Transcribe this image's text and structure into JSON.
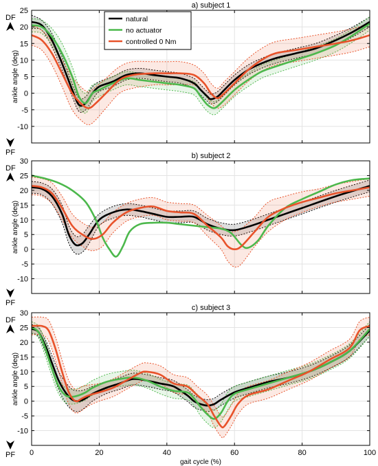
{
  "chart_data": [
    {
      "type": "line",
      "title": "a) subject 1",
      "xlabel": "",
      "ylabel": "ankle angle (deg)",
      "xlim": [
        0,
        100
      ],
      "ylim": [
        -15,
        25
      ],
      "yticks": [
        -10,
        -5,
        0,
        5,
        10,
        15,
        20,
        25
      ],
      "xticks": [
        0,
        20,
        40,
        60,
        80,
        100
      ],
      "grid": true,
      "side_labels": {
        "top": "DF",
        "bottom": "PF"
      },
      "legend": {
        "placement": "top-center",
        "entries": [
          "natural",
          "no actuator",
          "controlled 0 Nm"
        ]
      },
      "series": [
        {
          "name": "natural",
          "color": "#000000",
          "x": [
            0,
            3,
            6,
            9,
            12,
            14,
            16,
            18,
            20,
            24,
            28,
            32,
            36,
            40,
            44,
            48,
            50,
            52,
            53,
            55,
            57,
            60,
            64,
            68,
            72,
            78,
            84,
            90,
            95,
            100
          ],
          "y": [
            21.5,
            20.5,
            16,
            9,
            1,
            -3.5,
            -3,
            0,
            2,
            3.5,
            5.5,
            6,
            5.5,
            5,
            4.5,
            3,
            1,
            -1,
            -1.8,
            -1,
            1,
            4,
            7,
            9,
            10.5,
            12,
            13.5,
            16,
            18.5,
            21.5
          ],
          "band": [
            2,
            1.5,
            2,
            2,
            2,
            2,
            2,
            2,
            1.5,
            1.5,
            1.5,
            1.5,
            1.5,
            1.5,
            1.5,
            1.5,
            1.5,
            1.5,
            1.5,
            1.5,
            1.5,
            1.5,
            1.5,
            1.5,
            1.5,
            1.5,
            1.5,
            1.5,
            1.5,
            1.5
          ]
        },
        {
          "name": "no actuator",
          "color": "#4cb84c",
          "x": [
            0,
            3,
            6,
            9,
            12,
            14,
            16,
            18,
            20,
            24,
            28,
            32,
            36,
            40,
            44,
            48,
            50,
            52,
            54,
            56,
            60,
            64,
            68,
            72,
            78,
            84,
            90,
            95,
            100
          ],
          "y": [
            20.5,
            20,
            17,
            12,
            5,
            -1,
            -3,
            0,
            1,
            3,
            4.5,
            4,
            3.5,
            3,
            2.5,
            1.5,
            -1,
            -3.5,
            -4.5,
            -3,
            1,
            4,
            6.5,
            8,
            10,
            12,
            14.5,
            17.5,
            21
          ],
          "band": [
            2,
            2,
            2.5,
            3,
            3,
            3,
            3,
            2.5,
            2,
            2,
            2,
            2,
            2,
            2,
            2,
            2,
            2,
            2,
            2,
            2,
            2,
            2,
            2,
            2,
            2,
            2,
            2,
            2,
            2
          ]
        },
        {
          "name": "controlled 0 Nm",
          "color": "#e8522a",
          "x": [
            0,
            3,
            6,
            9,
            12,
            15,
            17,
            19,
            22,
            26,
            30,
            36,
            40,
            44,
            48,
            51,
            53,
            55,
            57,
            60,
            64,
            68,
            72,
            78,
            84,
            90,
            95,
            100
          ],
          "y": [
            17.5,
            16,
            12,
            6,
            0,
            -3.5,
            -4.5,
            -3,
            0,
            4,
            5.5,
            6,
            6,
            6,
            5.5,
            3,
            0,
            -1.5,
            0,
            3,
            7,
            10,
            12,
            13,
            14,
            15,
            16,
            17.5
          ],
          "band": [
            3,
            3,
            3.5,
            4,
            5,
            5,
            5,
            5,
            4.5,
            4,
            4,
            3.5,
            3.5,
            3.5,
            3,
            3,
            3,
            3,
            3.5,
            3.5,
            3.5,
            3.5,
            3.5,
            3.5,
            3.5,
            3.5,
            3.5,
            3.5
          ]
        }
      ]
    },
    {
      "type": "line",
      "title": "b) subject 2",
      "xlabel": "",
      "ylabel": "ankle angle (deg)",
      "xlim": [
        0,
        100
      ],
      "ylim": [
        -15,
        30
      ],
      "yticks": [
        -10,
        -5,
        0,
        5,
        10,
        15,
        20,
        25,
        30
      ],
      "xticks": [
        0,
        20,
        40,
        60,
        80,
        100
      ],
      "grid": true,
      "side_labels": {
        "top": "DF",
        "bottom": "PF"
      },
      "series": [
        {
          "name": "natural",
          "color": "#000000",
          "x": [
            0,
            3,
            6,
            9,
            11,
            13,
            15,
            17,
            20,
            24,
            28,
            32,
            36,
            40,
            44,
            48,
            52,
            56,
            60,
            65,
            70,
            75,
            80,
            90,
            100
          ],
          "y": [
            21,
            20.5,
            18,
            12,
            5,
            1.5,
            2,
            5,
            10,
            12.5,
            13.5,
            13,
            12,
            11,
            11,
            11,
            8.5,
            7,
            6.5,
            8,
            10,
            12,
            14,
            18,
            21.5
          ],
          "band": [
            2,
            2,
            2.5,
            3,
            3,
            3,
            3,
            3,
            2,
            2,
            2,
            2,
            2,
            2,
            2,
            2,
            2,
            2,
            2,
            2,
            2,
            2,
            2,
            2,
            2
          ]
        },
        {
          "name": "no actuator",
          "color": "#4cb84c",
          "x": [
            0,
            4,
            8,
            12,
            16,
            19,
            21,
            23,
            25,
            27,
            29,
            32,
            36,
            40,
            44,
            48,
            52,
            56,
            59,
            62,
            64,
            67,
            70,
            75,
            80,
            85,
            90,
            95,
            100
          ],
          "y": [
            25,
            24,
            22.5,
            20,
            16,
            10,
            4,
            0,
            -2.5,
            1,
            6,
            8.5,
            9,
            9,
            8.5,
            8,
            7.5,
            7,
            5.5,
            1.5,
            0.5,
            3,
            8,
            14,
            17,
            19.5,
            22,
            23.5,
            24
          ]
        },
        {
          "name": "controlled 0 Nm",
          "color": "#e8522a",
          "x": [
            0,
            3,
            6,
            9,
            12,
            15,
            18,
            21,
            24,
            28,
            32,
            36,
            40,
            44,
            48,
            52,
            56,
            58,
            60,
            62,
            66,
            70,
            75,
            80,
            85,
            90,
            95,
            100
          ],
          "y": [
            21.5,
            21,
            19,
            14,
            8,
            5,
            3.5,
            5,
            9,
            12.5,
            14,
            14.5,
            13,
            12.5,
            12,
            8,
            4,
            1,
            0,
            1,
            6,
            11,
            14,
            16,
            17.5,
            19,
            20,
            21
          ],
          "band": [
            3,
            3,
            3.5,
            4,
            4,
            4,
            4,
            4,
            3.5,
            3,
            3,
            3,
            3,
            3,
            3,
            3.5,
            4,
            5,
            6,
            6,
            5,
            5,
            4,
            3.5,
            3,
            3,
            3,
            3
          ]
        }
      ]
    },
    {
      "type": "line",
      "title": "c) subject 3",
      "xlabel": "gait cycle (%)",
      "ylabel": "ankle angle (deg)",
      "xlim": [
        0,
        100
      ],
      "ylim": [
        -15,
        30
      ],
      "yticks": [
        -10,
        -5,
        0,
        5,
        10,
        15,
        20,
        25,
        30
      ],
      "xticks": [
        0,
        20,
        40,
        60,
        80,
        100
      ],
      "xticklabels": [
        "0",
        "20",
        "40",
        "60",
        "80",
        "100"
      ],
      "grid": true,
      "side_labels": {
        "top": "DF",
        "bottom": "PF"
      },
      "series": [
        {
          "name": "natural",
          "color": "#000000",
          "x": [
            0,
            2,
            4,
            6,
            8,
            10,
            12,
            14,
            16,
            18,
            22,
            26,
            30,
            34,
            38,
            42,
            46,
            48,
            50,
            52,
            54,
            56,
            60,
            64,
            70,
            76,
            82,
            88,
            94,
            100
          ],
          "y": [
            24.5,
            23.5,
            19,
            13,
            7,
            3,
            0.5,
            0,
            1,
            2.5,
            4.5,
            6,
            7.5,
            7,
            6,
            5,
            2,
            0,
            -1,
            -1.5,
            -1,
            0.5,
            3,
            4.5,
            6.5,
            8,
            10,
            13,
            17,
            24
          ],
          "band": [
            1.5,
            1.5,
            2,
            2.5,
            3,
            3.5,
            3.5,
            3.5,
            3,
            2.5,
            2,
            2,
            2,
            2,
            2,
            2,
            2,
            2,
            2,
            2,
            2,
            2,
            2,
            2,
            2,
            2,
            2,
            2,
            2,
            2
          ]
        },
        {
          "name": "no actuator",
          "color": "#4cb84c",
          "x": [
            0,
            2,
            4,
            6,
            8,
            10,
            12,
            14,
            16,
            18,
            22,
            26,
            30,
            34,
            38,
            42,
            46,
            48,
            50,
            52,
            54,
            56,
            58,
            60,
            64,
            70,
            76,
            82,
            88,
            94,
            100
          ],
          "y": [
            25,
            23.5,
            18,
            11,
            5,
            2,
            1.5,
            2,
            3,
            4.5,
            6.5,
            7.5,
            8,
            7,
            5,
            3.5,
            3,
            1,
            -2,
            -4.5,
            -6,
            -4,
            0,
            2.5,
            4,
            6,
            8,
            10,
            13,
            17,
            24.5
          ],
          "band": [
            2,
            2,
            2.5,
            2.5,
            2.5,
            2.5,
            2.5,
            2.5,
            2.5,
            2.5,
            2.5,
            2.5,
            2.5,
            2.5,
            2.5,
            2.5,
            2.5,
            2.5,
            3,
            3,
            3,
            3,
            3,
            2.5,
            2.5,
            2.5,
            2.5,
            2.5,
            2.5,
            2.5,
            2.5
          ]
        },
        {
          "name": "controlled 0 Nm",
          "color": "#e8522a",
          "x": [
            0,
            3,
            5,
            7,
            9,
            11,
            13,
            15,
            17,
            20,
            24,
            28,
            32,
            34,
            38,
            42,
            46,
            49,
            52,
            54,
            56,
            57,
            59,
            61,
            64,
            70,
            76,
            82,
            88,
            94,
            97,
            100
          ],
          "y": [
            25.5,
            25.5,
            24,
            18,
            10,
            3,
            0,
            1,
            2,
            3,
            4.5,
            7,
            9.5,
            10,
            9,
            6,
            5,
            2,
            -1,
            -5,
            -8.5,
            -8.5,
            -5,
            -1,
            2,
            4,
            7,
            10,
            14,
            18,
            24,
            25.5
          ],
          "band": [
            3,
            3,
            3.5,
            4,
            4,
            4,
            4,
            4,
            3.5,
            3,
            3,
            3,
            3,
            3,
            3,
            3,
            3,
            3,
            3,
            3.5,
            3.5,
            3.5,
            3.5,
            3.5,
            3,
            3,
            3,
            3,
            3,
            3,
            3,
            3
          ]
        }
      ]
    }
  ]
}
